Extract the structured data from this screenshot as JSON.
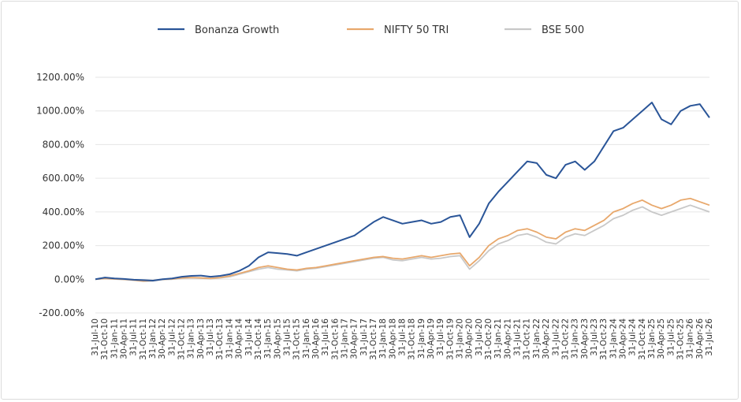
{
  "chart_data": {
    "type": "line",
    "title": "",
    "xlabel": "",
    "ylabel": "",
    "ylim": [
      -200,
      1200
    ],
    "y_ticks": [
      "1200.00%",
      "1000.00%",
      "800.00%",
      "600.00%",
      "400.00%",
      "200.00%",
      "0.00%",
      "-200.00%"
    ],
    "y_tick_values": [
      1200,
      1000,
      800,
      600,
      400,
      200,
      0,
      -200
    ],
    "x_ticks": [
      "31-Jul-10",
      "31-Oct-10",
      "31-Jan-11",
      "30-Apr-11",
      "31-Jul-11",
      "31-Oct-11",
      "31-Jan-12",
      "30-Apr-12",
      "31-Jul-12",
      "31-Oct-12",
      "31-Jan-13",
      "30-Apr-13",
      "31-Jul-13",
      "31-Oct-13",
      "31-Jan-14",
      "30-Apr-14",
      "31-Jul-14",
      "31-Oct-14",
      "31-Jan-15",
      "30-Apr-15",
      "31-Jul-15",
      "31-Oct-15",
      "31-Jan-16",
      "30-Apr-16",
      "31-Jul-16",
      "31-Oct-16",
      "31-Jan-17",
      "30-Apr-17",
      "31-Jul-17",
      "31-Oct-17",
      "31-Jan-18",
      "30-Apr-18",
      "31-Jul-18",
      "31-Oct-18",
      "31-Jan-19",
      "30-Apr-19",
      "31-Jul-19",
      "31-Oct-19",
      "31-Jan-20",
      "30-Apr-20",
      "31-Jul-20",
      "31-Oct-20",
      "31-Jan-21",
      "30-Apr-21",
      "31-Jul-21",
      "31-Oct-21",
      "31-Jan-22",
      "30-Apr-22",
      "31-Jul-22",
      "31-Oct-22",
      "31-Jan-23",
      "30-Apr-23",
      "31-Jul-23",
      "31-Oct-23",
      "31-Jan-24",
      "30-Apr-24",
      "31-Jul-24",
      "31-Oct-24",
      "31-Jan-25",
      "30-Apr-25",
      "31-Jul-25",
      "31-Oct-25",
      "31-Jan-26",
      "30-Apr-26",
      "31-Jul-26"
    ],
    "legend_position": "top",
    "grid": true,
    "series": [
      {
        "name": "Bonanza Growth",
        "color": "#2a5598",
        "values": [
          0,
          10,
          5,
          2,
          -3,
          -5,
          -8,
          0,
          5,
          15,
          20,
          22,
          15,
          20,
          30,
          50,
          80,
          130,
          160,
          155,
          150,
          140,
          160,
          180,
          200,
          220,
          240,
          260,
          300,
          340,
          370,
          350,
          330,
          340,
          350,
          330,
          340,
          370,
          380,
          250,
          330,
          450,
          520,
          580,
          640,
          700,
          690,
          620,
          600,
          680,
          700,
          650,
          700,
          790,
          880,
          900,
          950,
          1000,
          1050,
          950,
          920,
          1000,
          1030,
          1040,
          960
        ]
      },
      {
        "name": "NIFTY 50 TRI",
        "color": "#e8a86c",
        "values": [
          0,
          5,
          2,
          0,
          -5,
          -10,
          -8,
          0,
          2,
          8,
          10,
          8,
          5,
          10,
          20,
          35,
          50,
          70,
          80,
          70,
          60,
          55,
          65,
          70,
          80,
          90,
          100,
          110,
          120,
          130,
          135,
          125,
          120,
          130,
          140,
          130,
          140,
          150,
          155,
          80,
          130,
          200,
          240,
          260,
          290,
          300,
          280,
          250,
          240,
          280,
          300,
          290,
          320,
          350,
          400,
          420,
          450,
          470,
          440,
          420,
          440,
          470,
          480,
          460,
          440
        ]
      },
      {
        "name": "BSE 500",
        "color": "#c8c8c8",
        "values": [
          0,
          4,
          1,
          -2,
          -6,
          -12,
          -10,
          -2,
          0,
          5,
          8,
          6,
          3,
          8,
          15,
          30,
          45,
          60,
          70,
          60,
          55,
          50,
          60,
          65,
          75,
          85,
          95,
          105,
          115,
          125,
          130,
          115,
          110,
          120,
          130,
          120,
          125,
          135,
          140,
          60,
          110,
          170,
          210,
          230,
          260,
          270,
          250,
          220,
          210,
          250,
          270,
          260,
          290,
          320,
          360,
          380,
          410,
          430,
          400,
          380,
          400,
          420,
          440,
          420,
          400
        ]
      }
    ]
  }
}
